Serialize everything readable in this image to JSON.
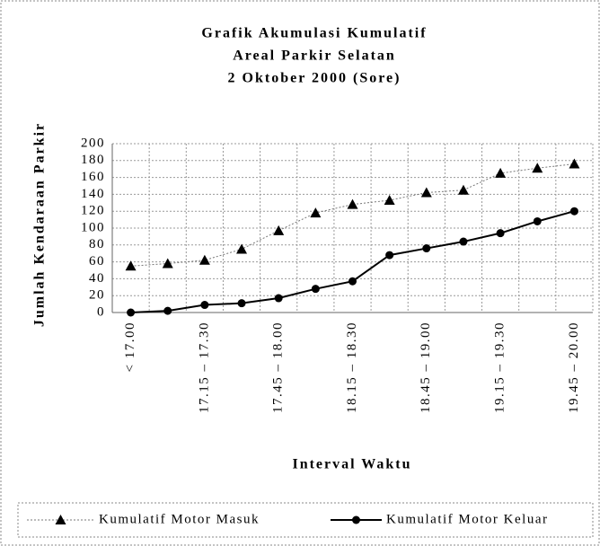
{
  "chart_data": {
    "type": "line",
    "title": [
      "Grafik Akumulasi Kumulatif",
      "Areal Parkir Selatan",
      "2 Oktober 2000 (Sore)"
    ],
    "x_label": "Interval Waktu",
    "y_label": "Jumlah Kendaraan Parkir",
    "categories": [
      "< 17.00",
      null,
      "17.15 – 17.30",
      null,
      "17.45 – 18.00",
      null,
      "18.15 – 18.30",
      null,
      "18.45 – 19.00",
      null,
      "19.15 – 19.30",
      null,
      "19.45 – 20.00"
    ],
    "series": [
      {
        "name": "Kumulatif Motor Masuk",
        "color": "#000000",
        "line_style": "dotted",
        "marker": "triangle",
        "values": [
          55,
          58,
          62,
          75,
          97,
          118,
          128,
          133,
          142,
          145,
          165,
          171,
          176
        ]
      },
      {
        "name": "Kumulatif Motor Keluar",
        "color": "#000000",
        "line_style": "solid",
        "marker": "circle",
        "values": [
          0,
          2,
          9,
          11,
          17,
          28,
          37,
          68,
          76,
          84,
          94,
          108,
          120
        ]
      }
    ],
    "ylim": [
      0,
      200
    ],
    "yticks": [
      0,
      20,
      40,
      60,
      80,
      100,
      120,
      140,
      160,
      180,
      200
    ],
    "grid": true,
    "legend": "bottom"
  }
}
